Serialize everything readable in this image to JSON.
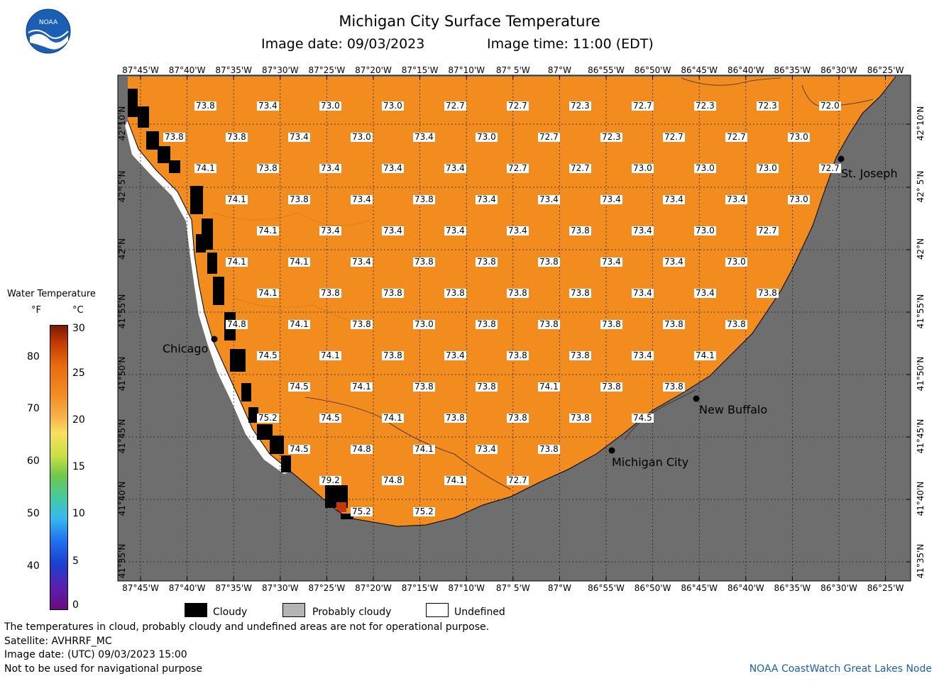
{
  "header": {
    "title": "Michigan City Surface Temperature",
    "image_date": "Image date: 09/03/2023",
    "image_time": "Image time: 11:00 (EDT)"
  },
  "logo": {
    "text": "NOAA"
  },
  "colors": {
    "land": "#6e6e6e",
    "water": "#f28c1f",
    "cloud": "#000000",
    "undefined": "#ffffff",
    "probably_cloudy": "#b4b4b4",
    "city_marker": "#000000"
  },
  "map": {
    "lon_labels": [
      "87°45'W",
      "87°40'W",
      "87°35'W",
      "87°30'W",
      "87°25'W",
      "87°20'W",
      "87°15'W",
      "87°10'W",
      "87° 5'W",
      "87°W",
      "86°55'W",
      "86°50'W",
      "86°45'W",
      "86°40'W",
      "86°35'W",
      "86°30'W",
      "86°25'W"
    ],
    "lat_labels": [
      "42°10'N",
      "42° 5'N",
      "42°N",
      "41°55'N",
      "41°50'N",
      "41°45'N",
      "41°40'N",
      "41°35'N"
    ],
    "cities": [
      {
        "name": "Chicago"
      },
      {
        "name": "St. Joseph"
      },
      {
        "name": "New Buffalo"
      },
      {
        "name": "Michigan City"
      }
    ],
    "temperature_rows": [
      [
        "73.8",
        "73.4",
        "73.0",
        "73.0",
        "72.7",
        "72.7",
        "72.3",
        "72.7",
        "72.3",
        "72.3",
        "72.0"
      ],
      [
        "73.8",
        "73.8",
        "73.4",
        "73.0",
        "73.4",
        "73.0",
        "72.7",
        "72.3",
        "72.7",
        "72.7",
        "73.0"
      ],
      [
        "74.1",
        "73.8",
        "73.4",
        "73.4",
        "73.4",
        "72.7",
        "72.7",
        "73.0",
        "73.0",
        "73.0",
        "72.7"
      ],
      [
        "74.1",
        "73.8",
        "73.4",
        "73.8",
        "73.4",
        "73.4",
        "73.4",
        "73.4",
        "73.4",
        "73.0"
      ],
      [
        "74.1",
        "73.4",
        "73.4",
        "73.4",
        "73.4",
        "73.8",
        "73.4",
        "73.0",
        "72.7"
      ],
      [
        "74.1",
        "74.1",
        "73.4",
        "73.8",
        "73.8",
        "73.8",
        "73.4",
        "73.4",
        "73.0"
      ],
      [
        "74.1",
        "73.8",
        "73.8",
        "73.8",
        "73.8",
        "73.8",
        "73.4",
        "73.4",
        "73.8"
      ],
      [
        "74.8",
        "74.1",
        "73.8",
        "73.0",
        "73.8",
        "73.8",
        "73.8",
        "73.8",
        "73.8"
      ],
      [
        "74.5",
        "74.1",
        "73.8",
        "73.4",
        "73.8",
        "73.8",
        "73.4",
        "74.1"
      ],
      [
        "74.5",
        "74.1",
        "73.8",
        "73.8",
        "74.1",
        "73.8",
        "73.8"
      ],
      [
        "75.2",
        "74.5",
        "74.1",
        "73.8",
        "73.8",
        "73.8",
        "74.5"
      ],
      [
        "74.5",
        "74.8",
        "74.1",
        "73.4",
        "73.8"
      ],
      [
        "79.2",
        "74.8",
        "74.1",
        "72.7"
      ],
      [
        "75.2",
        "75.2"
      ]
    ]
  },
  "legend": {
    "title": "Water Temperature",
    "unit_f": "°F",
    "unit_c": "°C",
    "f_ticks": [
      "80",
      "70",
      "60",
      "50",
      "40"
    ],
    "c_ticks": [
      "30",
      "25",
      "20",
      "15",
      "10",
      "5",
      "0"
    ]
  },
  "cloud_legend": {
    "cloudy": "Cloudy",
    "probably_cloudy": "Probably cloudy",
    "undefined": "Undefined"
  },
  "footer": {
    "line1": "The temperatures in cloud, probably cloudy and undefined areas are not for operational purpose.",
    "line2": "Satellite: AVHRRF_MC",
    "line3": "Image date: (UTC) 09/03/2023  15:00",
    "line4": "Not to be used for navigational purpose",
    "credit": "NOAA CoastWatch Great Lakes Node"
  }
}
